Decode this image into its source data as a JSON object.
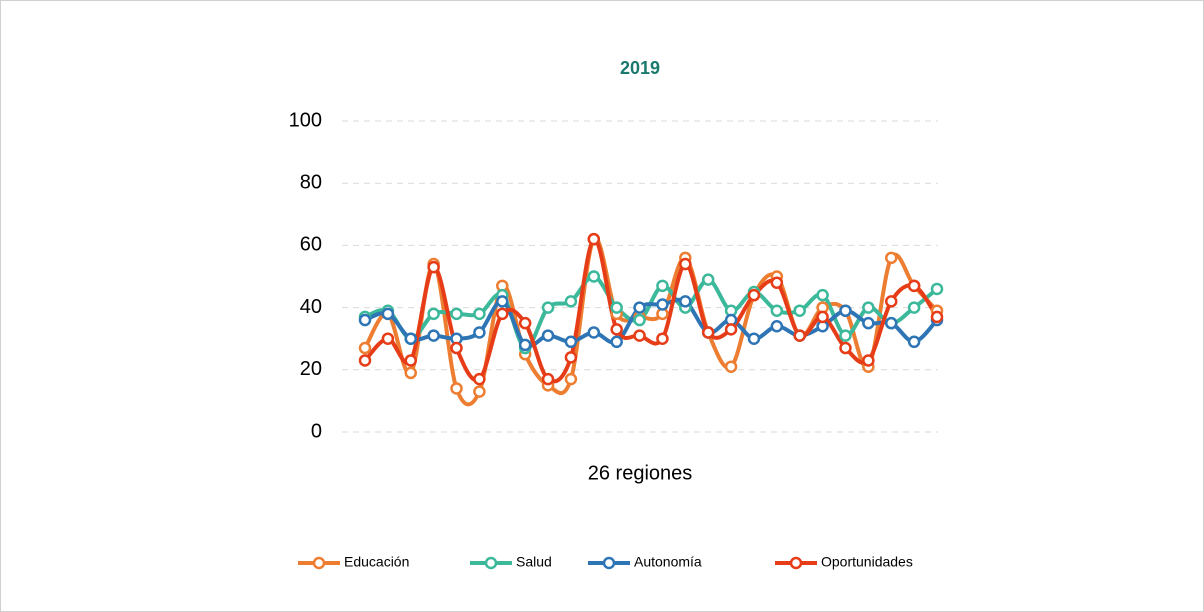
{
  "chart_data": {
    "type": "line",
    "title": "2019",
    "x_label": "26 regiones",
    "categories": [
      null,
      null,
      null,
      null,
      null,
      null,
      null,
      null,
      null,
      null,
      null,
      null,
      null,
      null,
      null,
      null,
      null,
      null,
      null,
      null,
      null,
      null,
      null,
      null,
      null,
      null
    ],
    "series": [
      {
        "name": "Educación",
        "color": "#ed7d31",
        "values": [
          27,
          38,
          19,
          54,
          14,
          13,
          47,
          25,
          15,
          17,
          62,
          38,
          37,
          38,
          56,
          32,
          21,
          44,
          50,
          31,
          40,
          39,
          21,
          56,
          47,
          39
        ]
      },
      {
        "name": "Salud",
        "color": "#3cb89a",
        "values": [
          37,
          39,
          30,
          38,
          38,
          38,
          44,
          27,
          40,
          42,
          50,
          40,
          36,
          47,
          40,
          49,
          39,
          45,
          39,
          39,
          44,
          31,
          40,
          35,
          40,
          46
        ]
      },
      {
        "name": "Autonomía",
        "color": "#2e75b6",
        "values": [
          36,
          38,
          30,
          31,
          30,
          32,
          42,
          28,
          31,
          29,
          32,
          29,
          40,
          41,
          42,
          32,
          36,
          30,
          34,
          31,
          34,
          39,
          35,
          35,
          29,
          36
        ]
      },
      {
        "name": "Oportunidades",
        "color": "#e63c17",
        "values": [
          23,
          30,
          23,
          53,
          27,
          17,
          38,
          35,
          17,
          24,
          62,
          33,
          31,
          30,
          54,
          32,
          33,
          44,
          48,
          31,
          37,
          27,
          23,
          42,
          47,
          37
        ]
      }
    ],
    "ylim": [
      0,
      100
    ],
    "yticks": [
      0,
      20,
      40,
      60,
      80,
      100
    ],
    "grid": true,
    "legend": "bottom"
  }
}
